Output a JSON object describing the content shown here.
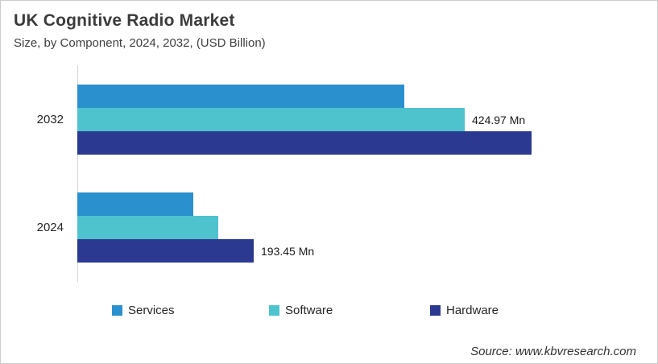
{
  "header": {
    "title": "UK Cognitive Radio Market",
    "subtitle": "Size, by Component, 2024, 2032, (USD Billion)"
  },
  "chart_data": {
    "type": "bar",
    "orientation": "horizontal",
    "title": "UK Cognitive Radio Market",
    "unit": "USD Million (Mn)",
    "categories": [
      "2032",
      "2024"
    ],
    "series": [
      {
        "name": "Services",
        "color": "#2b90ce",
        "values": [
          359,
          127
        ],
        "labels": [
          "",
          ""
        ]
      },
      {
        "name": "Software",
        "color": "#4ec3cd",
        "values": [
          424.97,
          154.5
        ],
        "labels": [
          "424.97 Mn",
          ""
        ]
      },
      {
        "name": "Hardware",
        "color": "#2b3990",
        "values": [
          498,
          193.45
        ],
        "labels": [
          "",
          "193.45 Mn"
        ]
      }
    ],
    "xlim": [
      0,
      520
    ],
    "grid": false,
    "legend_position": "bottom",
    "legend_entries": [
      "Services",
      "Software",
      "Hardware"
    ]
  },
  "footer": {
    "source": "Source: www.kbvresearch.com"
  }
}
